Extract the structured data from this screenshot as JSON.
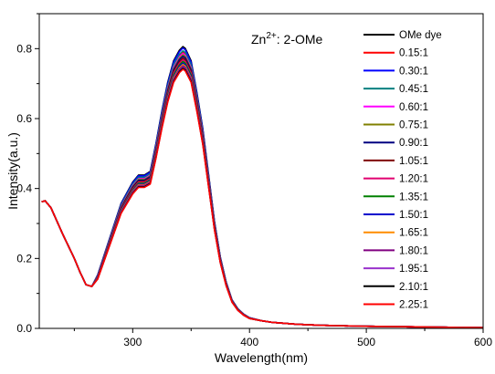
{
  "chart_data": {
    "type": "line",
    "xlabel": "Wavelength(nm)",
    "ylabel": "Intensity(a.u.)",
    "annotation": {
      "base": "Zn",
      "superscript": "2+",
      "suffix": ": 2-OMe"
    },
    "xlim": [
      220,
      600
    ],
    "ylim": [
      0,
      0.9
    ],
    "xticks": [
      300,
      400,
      500,
      600
    ],
    "xtick_labels": [
      "300",
      "400",
      "500",
      "600"
    ],
    "yticks": [
      0.0,
      0.2,
      0.4,
      0.6,
      0.8
    ],
    "ytick_labels": [
      "0.0",
      "0.2",
      "0.4",
      "0.6",
      "0.8"
    ],
    "grid": false,
    "legend_position": "top-right",
    "x": [
      222,
      225,
      230,
      240,
      250,
      255,
      260,
      265,
      270,
      280,
      290,
      300,
      305,
      310,
      315,
      320,
      325,
      330,
      335,
      340,
      343,
      345,
      350,
      355,
      360,
      365,
      370,
      375,
      380,
      385,
      390,
      395,
      400,
      410,
      420,
      440,
      460,
      500,
      550,
      600
    ],
    "base_curve": [
      0.362,
      0.365,
      0.345,
      0.27,
      0.2,
      0.16,
      0.125,
      0.12,
      0.15,
      0.25,
      0.35,
      0.41,
      0.43,
      0.43,
      0.44,
      0.52,
      0.61,
      0.69,
      0.75,
      0.78,
      0.79,
      0.785,
      0.75,
      0.66,
      0.56,
      0.43,
      0.3,
      0.2,
      0.13,
      0.08,
      0.055,
      0.04,
      0.03,
      0.022,
      0.017,
      0.012,
      0.009,
      0.006,
      0.004,
      0.002
    ],
    "series": [
      {
        "name": "OMe dye",
        "color": "#000000",
        "scale": 1.02
      },
      {
        "name": "0.15:1",
        "color": "#ff0000",
        "scale": 1.0
      },
      {
        "name": "0.30:1",
        "color": "#0000ff",
        "scale": 1.015
      },
      {
        "name": "0.45:1",
        "color": "#008080",
        "scale": 1.005
      },
      {
        "name": "0.60:1",
        "color": "#ff00ff",
        "scale": 0.995
      },
      {
        "name": "0.75:1",
        "color": "#808000",
        "scale": 0.99
      },
      {
        "name": "0.90:1",
        "color": "#000080",
        "scale": 0.985
      },
      {
        "name": "1.05:1",
        "color": "#800000",
        "scale": 0.978
      },
      {
        "name": "1.20:1",
        "color": "#e0006f",
        "scale": 0.972
      },
      {
        "name": "1.35:1",
        "color": "#008000",
        "scale": 0.966
      },
      {
        "name": "1.50:1",
        "color": "#0000cd",
        "scale": 0.96
      },
      {
        "name": "1.65:1",
        "color": "#ff8c00",
        "scale": 0.955
      },
      {
        "name": "1.80:1",
        "color": "#800080",
        "scale": 0.95
      },
      {
        "name": "1.95:1",
        "color": "#9932cc",
        "scale": 0.945
      },
      {
        "name": "2.10:1",
        "color": "#000000",
        "scale": 0.942
      },
      {
        "name": "2.25:1",
        "color": "#ff0000",
        "scale": 0.938
      }
    ]
  }
}
